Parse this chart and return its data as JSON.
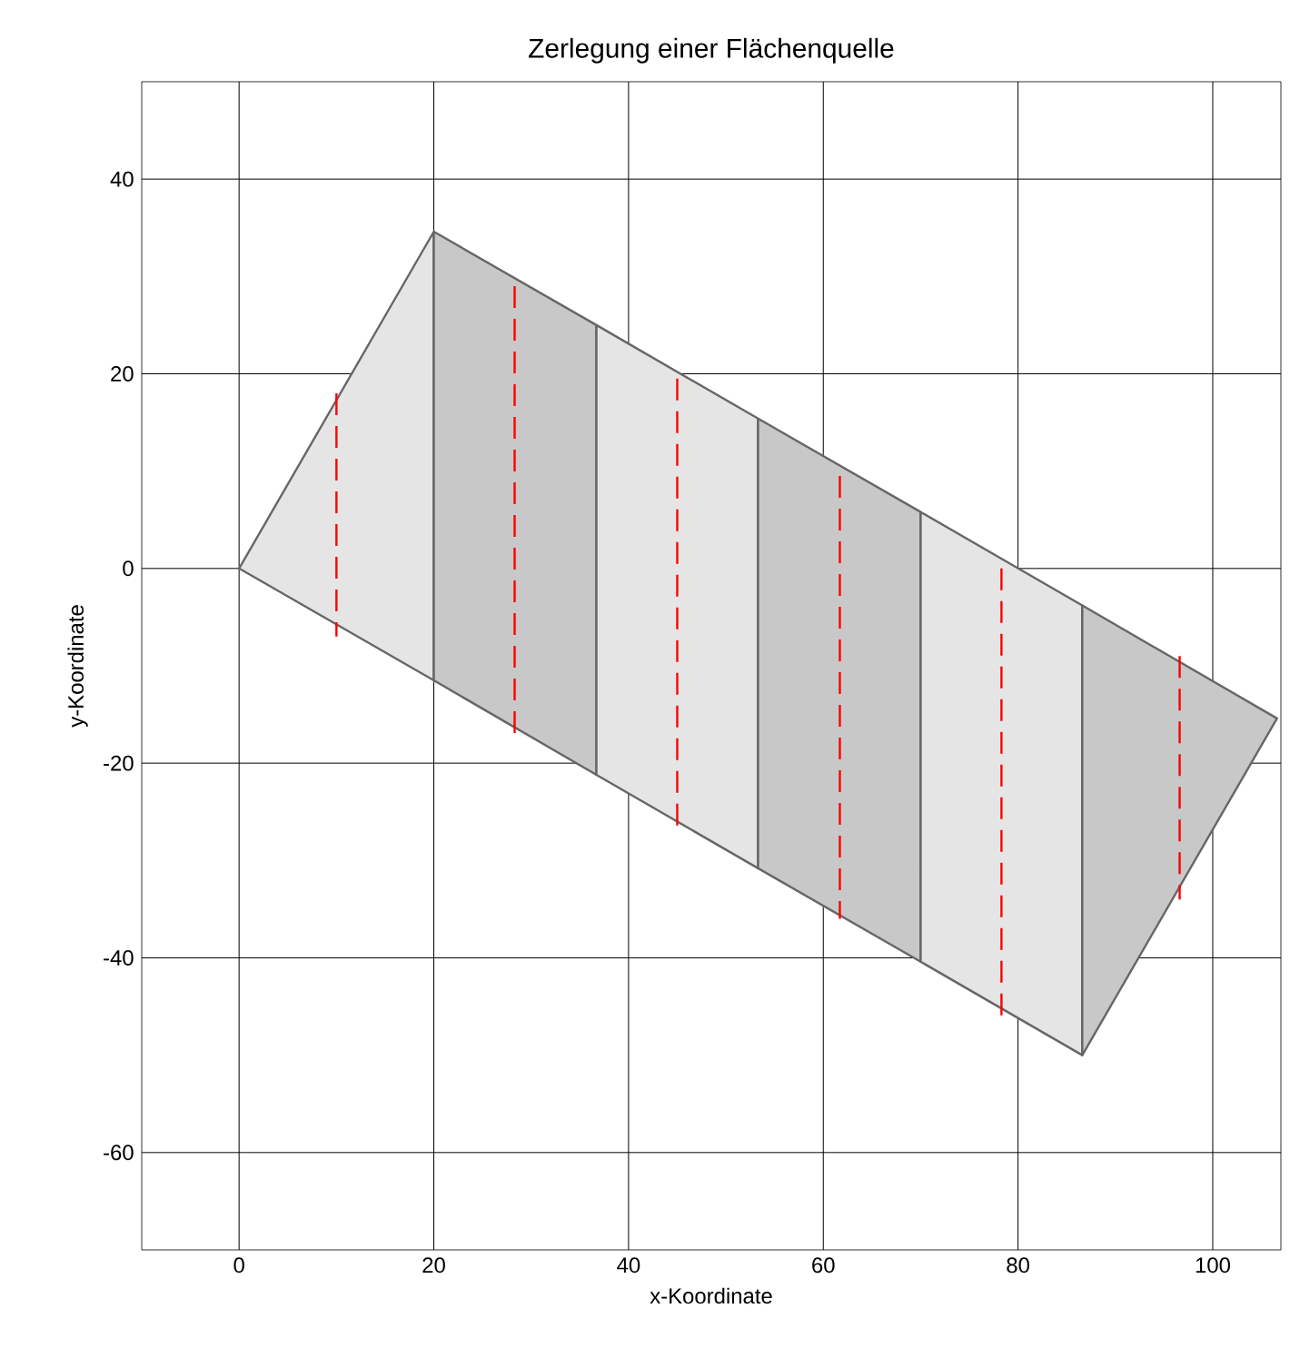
{
  "chart_data": {
    "type": "area",
    "title": "Zerlegung einer Flächenquelle",
    "xlabel": "x-Koordinate",
    "ylabel": "y-Koordinate",
    "xlim": [
      -10,
      107
    ],
    "ylim": [
      -70,
      50
    ],
    "xticks": [
      0,
      20,
      40,
      60,
      80,
      100
    ],
    "yticks": [
      -60,
      -40,
      -20,
      0,
      20,
      40
    ],
    "grid": true,
    "series": [
      {
        "color": "#e5e5e5",
        "x": [
          0,
          20,
          20,
          0
        ],
        "values": [
          0,
          34.6,
          -11.5,
          0
        ]
      },
      {
        "color": "#c8c8c8",
        "x": [
          20,
          36.7,
          36.7,
          20,
          20
        ],
        "values": [
          34.6,
          25,
          -21.2,
          -11.5,
          34.6
        ]
      },
      {
        "color": "#e5e5e5",
        "x": [
          36.7,
          53.3,
          53.3,
          36.7,
          36.7
        ],
        "values": [
          25,
          15.4,
          -30.8,
          -21.2,
          25
        ]
      },
      {
        "color": "#c8c8c8",
        "x": [
          53.3,
          70,
          70,
          53.3,
          53.3
        ],
        "values": [
          15.4,
          5.8,
          -40.4,
          -30.8,
          15.4
        ]
      },
      {
        "color": "#e5e5e5",
        "x": [
          70,
          86.6,
          86.6,
          70,
          70
        ],
        "values": [
          5.8,
          -3.8,
          -50,
          -40.4,
          5.8
        ]
      },
      {
        "color": "#c8c8c8",
        "x": [
          86.6,
          106.6,
          86.6,
          86.6
        ],
        "values": [
          -3.8,
          -15.4,
          -50,
          -3.8
        ]
      },
      {
        "type": "line",
        "line_style": "dashed",
        "color": "#ff0000",
        "x": [
          10,
          10
        ],
        "values": [
          18,
          -7
        ]
      },
      {
        "type": "line",
        "line_style": "dashed",
        "color": "#ff0000",
        "x": [
          28.3,
          28.3
        ],
        "values": [
          29,
          -17
        ]
      },
      {
        "type": "line",
        "line_style": "dashed",
        "color": "#ff0000",
        "x": [
          45,
          45
        ],
        "values": [
          19.5,
          -26.5
        ]
      },
      {
        "type": "line",
        "line_style": "dashed",
        "color": "#ff0000",
        "x": [
          61.7,
          61.7
        ],
        "values": [
          9.5,
          -36
        ]
      },
      {
        "type": "line",
        "line_style": "dashed",
        "color": "#ff0000",
        "x": [
          78.3,
          78.3
        ],
        "values": [
          0,
          -46
        ]
      },
      {
        "type": "line",
        "line_style": "dashed",
        "color": "#ff0000",
        "x": [
          96.6,
          96.6
        ],
        "values": [
          -9,
          -34
        ]
      }
    ]
  }
}
